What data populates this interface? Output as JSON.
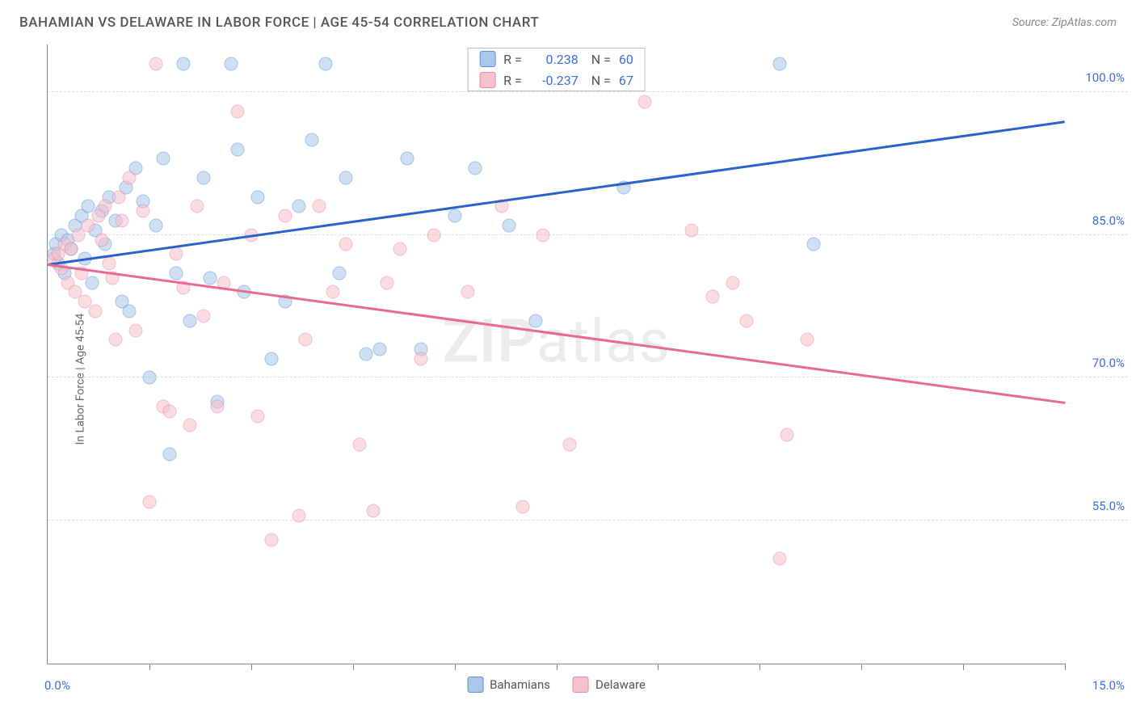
{
  "title": "BAHAMIAN VS DELAWARE IN LABOR FORCE | AGE 45-54 CORRELATION CHART",
  "source": "Source: ZipAtlas.com",
  "ylabel": "In Labor Force | Age 45-54",
  "watermark_bold": "ZIP",
  "watermark_rest": "atlas",
  "chart": {
    "type": "scatter",
    "xlim": [
      0,
      15
    ],
    "ylim": [
      40,
      105
    ],
    "x_min_label": "0.0%",
    "x_max_label": "15.0%",
    "y_ticks": [
      55,
      70,
      85,
      100
    ],
    "y_tick_labels": [
      "55.0%",
      "70.0%",
      "85.0%",
      "100.0%"
    ],
    "x_ticks_minor": [
      1.5,
      3.0,
      4.5,
      6.0,
      7.5,
      9.0,
      10.5,
      12.0,
      13.5,
      15.0
    ],
    "grid_color": "#dddddd",
    "axis_color": "#888888",
    "tick_label_color": "#3b6fd6",
    "background_color": "#ffffff",
    "marker_radius": 8.5,
    "marker_opacity": 0.55,
    "series": [
      {
        "name": "Bahamians",
        "color_fill": "#a9c7ea",
        "color_stroke": "#5a8fd6",
        "trend_color": "#2a62c9",
        "r_value": "0.238",
        "n_value": "60",
        "trend": {
          "x1": 0,
          "y1": 82,
          "x2": 15,
          "y2": 97
        },
        "points": [
          [
            0.1,
            83
          ],
          [
            0.12,
            84
          ],
          [
            0.15,
            82
          ],
          [
            0.2,
            85
          ],
          [
            0.25,
            81
          ],
          [
            0.3,
            84.5
          ],
          [
            0.35,
            83.5
          ],
          [
            0.4,
            86
          ],
          [
            0.5,
            87
          ],
          [
            0.55,
            82.5
          ],
          [
            0.6,
            88
          ],
          [
            0.65,
            80
          ],
          [
            0.7,
            85.5
          ],
          [
            0.8,
            87.5
          ],
          [
            0.85,
            84
          ],
          [
            0.9,
            89
          ],
          [
            1.0,
            86.5
          ],
          [
            1.1,
            78
          ],
          [
            1.15,
            90
          ],
          [
            1.2,
            77
          ],
          [
            1.3,
            92
          ],
          [
            1.4,
            88.5
          ],
          [
            1.5,
            70
          ],
          [
            1.6,
            86
          ],
          [
            1.7,
            93
          ],
          [
            1.8,
            62
          ],
          [
            1.9,
            81
          ],
          [
            2.0,
            103
          ],
          [
            2.1,
            76
          ],
          [
            2.3,
            91
          ],
          [
            2.4,
            80.5
          ],
          [
            2.5,
            67.5
          ],
          [
            2.7,
            103
          ],
          [
            2.8,
            94
          ],
          [
            2.9,
            79
          ],
          [
            3.1,
            89
          ],
          [
            3.3,
            72
          ],
          [
            3.5,
            78
          ],
          [
            3.7,
            88
          ],
          [
            3.9,
            95
          ],
          [
            4.1,
            103
          ],
          [
            4.3,
            81
          ],
          [
            4.4,
            91
          ],
          [
            4.7,
            72.5
          ],
          [
            4.9,
            73
          ],
          [
            5.3,
            93
          ],
          [
            5.5,
            73
          ],
          [
            6.0,
            87
          ],
          [
            6.3,
            92
          ],
          [
            6.8,
            86
          ],
          [
            7.2,
            76
          ],
          [
            8.5,
            90
          ],
          [
            10.8,
            103
          ],
          [
            11.3,
            84
          ]
        ]
      },
      {
        "name": "Delaware",
        "color_fill": "#f6c0cd",
        "color_stroke": "#e88aa4",
        "trend_color": "#e76b8e",
        "r_value": "-0.237",
        "n_value": "67",
        "trend": {
          "x1": 0,
          "y1": 82,
          "x2": 15,
          "y2": 67.5
        },
        "points": [
          [
            0.1,
            82.5
          ],
          [
            0.15,
            83
          ],
          [
            0.2,
            81.5
          ],
          [
            0.25,
            84
          ],
          [
            0.3,
            80
          ],
          [
            0.35,
            83.5
          ],
          [
            0.4,
            79
          ],
          [
            0.45,
            85
          ],
          [
            0.5,
            81
          ],
          [
            0.55,
            78
          ],
          [
            0.6,
            86
          ],
          [
            0.7,
            77
          ],
          [
            0.75,
            87
          ],
          [
            0.8,
            84.5
          ],
          [
            0.85,
            88
          ],
          [
            0.9,
            82
          ],
          [
            0.95,
            80.5
          ],
          [
            1.0,
            74
          ],
          [
            1.05,
            89
          ],
          [
            1.1,
            86.5
          ],
          [
            1.2,
            91
          ],
          [
            1.3,
            75
          ],
          [
            1.4,
            87.5
          ],
          [
            1.5,
            57
          ],
          [
            1.6,
            103
          ],
          [
            1.7,
            67
          ],
          [
            1.8,
            66.5
          ],
          [
            1.9,
            83
          ],
          [
            2.0,
            79.5
          ],
          [
            2.1,
            65
          ],
          [
            2.2,
            88
          ],
          [
            2.3,
            76.5
          ],
          [
            2.5,
            67
          ],
          [
            2.6,
            80
          ],
          [
            2.8,
            98
          ],
          [
            3.0,
            85
          ],
          [
            3.1,
            66
          ],
          [
            3.3,
            53
          ],
          [
            3.5,
            87
          ],
          [
            3.7,
            55.5
          ],
          [
            3.8,
            74
          ],
          [
            4.0,
            88
          ],
          [
            4.2,
            79
          ],
          [
            4.4,
            84
          ],
          [
            4.6,
            63
          ],
          [
            4.8,
            56
          ],
          [
            5.0,
            80
          ],
          [
            5.2,
            83.5
          ],
          [
            5.5,
            72
          ],
          [
            5.7,
            85
          ],
          [
            6.2,
            79
          ],
          [
            6.7,
            88
          ],
          [
            7.0,
            56.5
          ],
          [
            7.3,
            85
          ],
          [
            7.7,
            63
          ],
          [
            8.8,
            99
          ],
          [
            9.5,
            85.5
          ],
          [
            9.8,
            78.5
          ],
          [
            10.1,
            80
          ],
          [
            10.3,
            76
          ],
          [
            10.8,
            51
          ],
          [
            10.9,
            64
          ],
          [
            11.2,
            74
          ]
        ]
      }
    ]
  },
  "legend_top": {
    "r_label": "R  =",
    "n_label": "N  =",
    "text_color": "#555555",
    "value_color": "#3b6fd6"
  },
  "legend_bottom_labels": [
    "Bahamians",
    "Delaware"
  ]
}
